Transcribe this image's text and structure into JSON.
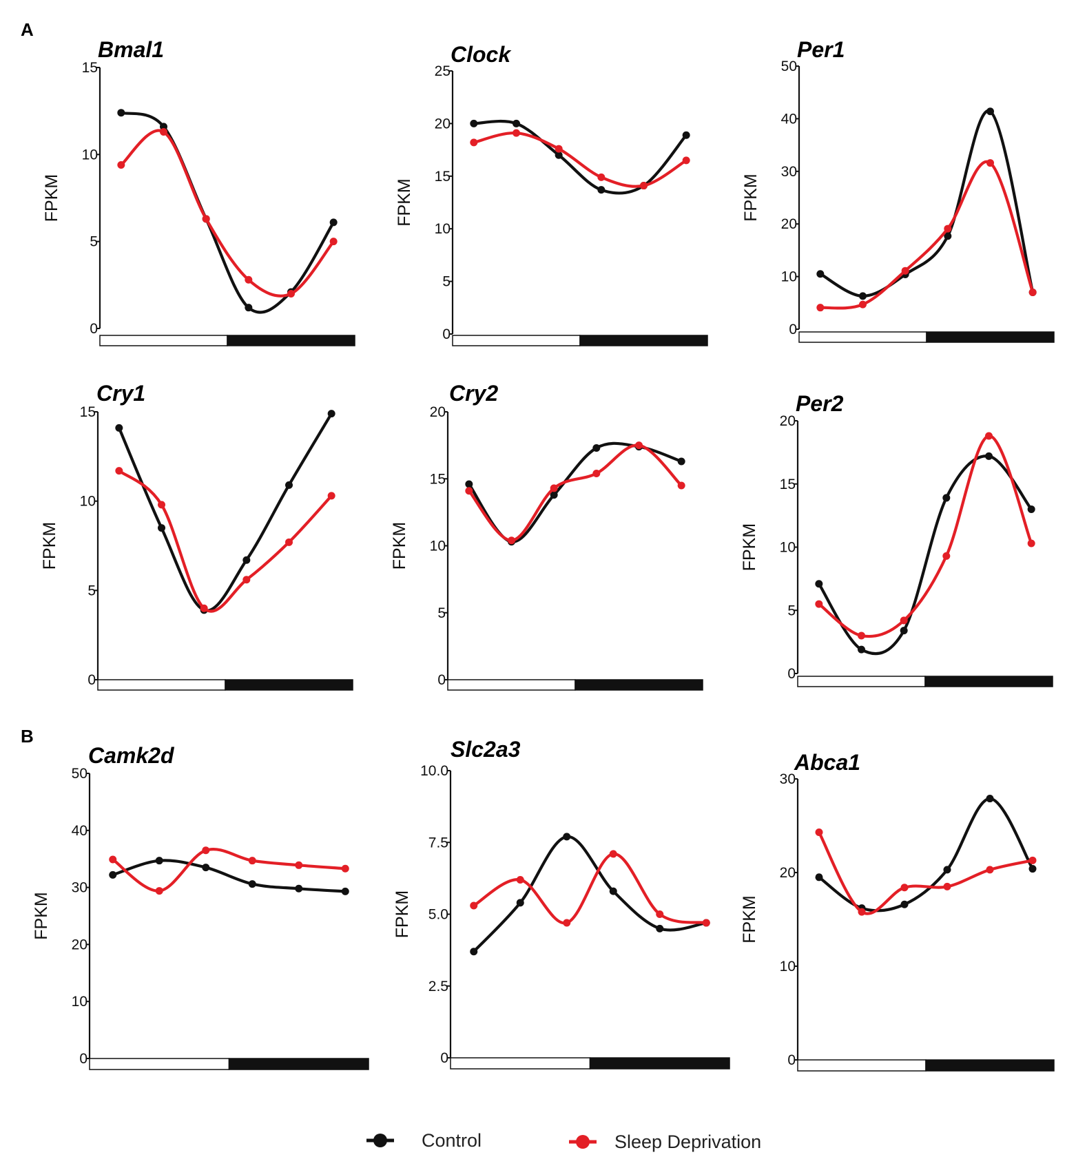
{
  "panel_labels": [
    "A",
    "B"
  ],
  "legend": {
    "control": "Control",
    "sleep_deprivation": "Sleep Deprivation"
  },
  "colors": {
    "control": "#111111",
    "sleep_deprivation": "#e31f26",
    "light_phase": "#ffffff",
    "dark_phase": "#111111"
  },
  "chart_data": [
    {
      "type": "line",
      "title": "Bmal1",
      "ylabel": "FPKM",
      "yticks": [
        "0",
        "5",
        "10",
        "15"
      ],
      "ylim": [
        0,
        15
      ],
      "x": [
        1,
        2,
        3,
        4,
        5,
        6
      ],
      "series": [
        {
          "name": "Control",
          "values": [
            12.4,
            11.6,
            6.3,
            1.2,
            2.1,
            6.1
          ]
        },
        {
          "name": "Sleep Deprivation",
          "values": [
            9.4,
            11.3,
            6.3,
            2.8,
            2.0,
            5.0
          ]
        }
      ]
    },
    {
      "type": "line",
      "title": "Clock",
      "ylabel": "FPKM",
      "yticks": [
        "0",
        "5",
        "10",
        "15",
        "20",
        "25"
      ],
      "ylim": [
        0,
        25
      ],
      "x": [
        1,
        2,
        3,
        4,
        5,
        6
      ],
      "series": [
        {
          "name": "Control",
          "values": [
            20.0,
            20.0,
            17.0,
            13.7,
            14.1,
            18.9
          ]
        },
        {
          "name": "Sleep Deprivation",
          "values": [
            18.2,
            19.1,
            17.6,
            14.9,
            14.1,
            16.5
          ]
        }
      ]
    },
    {
      "type": "line",
      "title": "Per1",
      "ylabel": "FPKM",
      "yticks": [
        "0",
        "10",
        "20",
        "30",
        "40",
        "50"
      ],
      "ylim": [
        0,
        50
      ],
      "x": [
        1,
        2,
        3,
        4,
        5,
        6
      ],
      "series": [
        {
          "name": "Control",
          "values": [
            10.5,
            6.3,
            10.4,
            17.7,
            41.4,
            7.0
          ]
        },
        {
          "name": "Sleep Deprivation",
          "values": [
            4.1,
            4.7,
            11.1,
            19.1,
            31.6,
            7.0
          ]
        }
      ]
    },
    {
      "type": "line",
      "title": "Cry1",
      "ylabel": "FPKM",
      "yticks": [
        "0",
        "5",
        "10",
        "15"
      ],
      "ylim": [
        0,
        15
      ],
      "x": [
        1,
        2,
        3,
        4,
        5,
        6
      ],
      "series": [
        {
          "name": "Control",
          "values": [
            14.1,
            8.5,
            3.9,
            6.7,
            10.9,
            14.9
          ]
        },
        {
          "name": "Sleep Deprivation",
          "values": [
            11.7,
            9.8,
            4.0,
            5.6,
            7.7,
            10.3
          ]
        }
      ]
    },
    {
      "type": "line",
      "title": "Cry2",
      "ylabel": "FPKM",
      "yticks": [
        "0",
        "5",
        "10",
        "15",
        "20"
      ],
      "ylim": [
        0,
        20
      ],
      "x": [
        1,
        2,
        3,
        4,
        5,
        6
      ],
      "series": [
        {
          "name": "Control",
          "values": [
            14.6,
            10.3,
            13.8,
            17.3,
            17.4,
            16.3
          ]
        },
        {
          "name": "Sleep Deprivation",
          "values": [
            14.1,
            10.4,
            14.3,
            15.4,
            17.5,
            14.5
          ]
        }
      ]
    },
    {
      "type": "line",
      "title": "Per2",
      "ylabel": "FPKM",
      "yticks": [
        "0",
        "5",
        "10",
        "15",
        "20"
      ],
      "ylim": [
        0,
        20
      ],
      "x": [
        1,
        2,
        3,
        4,
        5,
        6
      ],
      "series": [
        {
          "name": "Control",
          "values": [
            7.1,
            1.9,
            3.4,
            13.9,
            17.2,
            13.0
          ]
        },
        {
          "name": "Sleep Deprivation",
          "values": [
            5.5,
            3.0,
            4.2,
            9.3,
            18.8,
            10.3
          ]
        }
      ]
    },
    {
      "type": "line",
      "title": "Camk2d",
      "ylabel": "FPKM",
      "yticks": [
        "0",
        "10",
        "20",
        "30",
        "40",
        "50"
      ],
      "ylim": [
        0,
        50
      ],
      "x": [
        1,
        2,
        3,
        4,
        5,
        6
      ],
      "series": [
        {
          "name": "Control",
          "values": [
            32.2,
            34.7,
            33.5,
            30.6,
            29.8,
            29.3
          ]
        },
        {
          "name": "Sleep Deprivation",
          "values": [
            34.9,
            29.4,
            36.5,
            34.7,
            33.9,
            33.3
          ]
        }
      ]
    },
    {
      "type": "line",
      "title": "Slc2a3",
      "ylabel": "FPKM",
      "yticks": [
        "0",
        "2.5",
        "5.0",
        "7.5",
        "10.0"
      ],
      "ylim": [
        0,
        10
      ],
      "x": [
        1,
        2,
        3,
        4,
        5,
        6
      ],
      "series": [
        {
          "name": "Control",
          "values": [
            3.7,
            5.4,
            7.7,
            5.8,
            4.5,
            4.7
          ]
        },
        {
          "name": "Sleep Deprivation",
          "values": [
            5.3,
            6.2,
            4.7,
            7.1,
            5.0,
            4.7
          ]
        }
      ]
    },
    {
      "type": "line",
      "title": "Abca1",
      "ylabel": "FPKM",
      "yticks": [
        "0",
        "10",
        "20",
        "30"
      ],
      "ylim": [
        0,
        30
      ],
      "x": [
        1,
        2,
        3,
        4,
        5,
        6
      ],
      "series": [
        {
          "name": "Control",
          "values": [
            19.5,
            16.2,
            16.6,
            20.3,
            27.9,
            20.4
          ]
        },
        {
          "name": "Sleep Deprivation",
          "values": [
            24.3,
            15.8,
            18.4,
            18.5,
            20.3,
            21.3
          ]
        }
      ]
    }
  ]
}
